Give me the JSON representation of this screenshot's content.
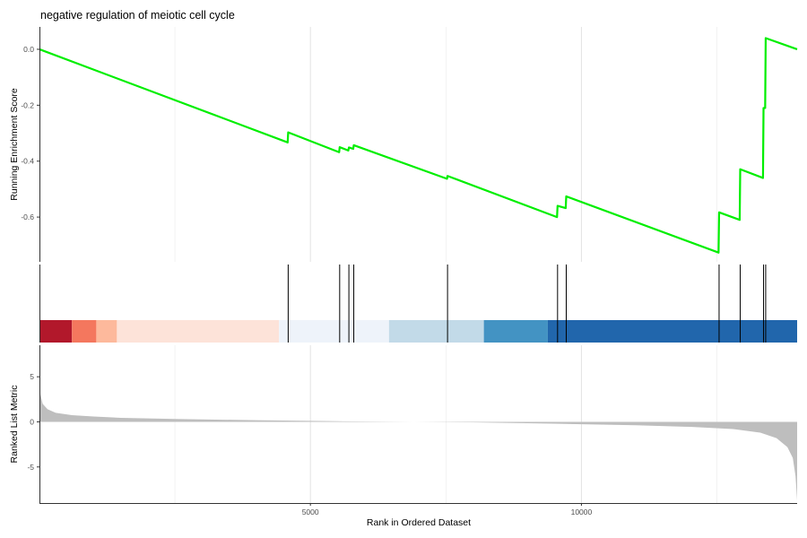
{
  "chart_data": {
    "type": "line",
    "title": "negative regulation of meiotic cell cycle",
    "x_range": [
      1,
      13980
    ],
    "xlabel": "Rank in Ordered Dataset",
    "x_ticks": [
      5000,
      10000
    ],
    "x_tick_labels": [
      "5000",
      "10000"
    ],
    "panels": [
      {
        "id": "running_es",
        "ylabel": "Running Enrichment Score",
        "ylim": [
          -0.76,
          0.08
        ],
        "y_ticks": [
          0.0,
          -0.2,
          -0.4,
          -0.6
        ],
        "y_tick_labels": [
          "0.0",
          "-0.2",
          "-0.4",
          "-0.6"
        ],
        "series_color": "#00EE00",
        "points": [
          [
            0,
            0.0
          ],
          [
            4580,
            -0.333
          ],
          [
            4590,
            -0.297
          ],
          [
            5530,
            -0.368
          ],
          [
            5540,
            -0.35
          ],
          [
            5700,
            -0.362
          ],
          [
            5710,
            -0.351
          ],
          [
            5790,
            -0.356
          ],
          [
            5800,
            -0.343
          ],
          [
            7520,
            -0.463
          ],
          [
            7530,
            -0.453
          ],
          [
            9550,
            -0.6
          ],
          [
            9560,
            -0.56
          ],
          [
            9710,
            -0.568
          ],
          [
            9720,
            -0.526
          ],
          [
            12530,
            -0.727
          ],
          [
            12540,
            -0.583
          ],
          [
            12920,
            -0.61
          ],
          [
            12930,
            -0.429
          ],
          [
            13350,
            -0.46
          ],
          [
            13360,
            -0.21
          ],
          [
            13390,
            -0.21
          ],
          [
            13400,
            0.04
          ],
          [
            13980,
            0.0
          ]
        ]
      },
      {
        "id": "gene_hits",
        "hit_ranks": [
          4590,
          5540,
          5710,
          5800,
          7530,
          9560,
          9720,
          12540,
          12930,
          13360,
          13400
        ],
        "color_bands": [
          {
            "from": 0,
            "to": 600,
            "color": "#B2182B"
          },
          {
            "from": 600,
            "to": 1050,
            "color": "#F4775E"
          },
          {
            "from": 1050,
            "to": 1430,
            "color": "#FDB99C"
          },
          {
            "from": 1430,
            "to": 4420,
            "color": "#FDE3D9"
          },
          {
            "from": 4420,
            "to": 6450,
            "color": "#EEF3FA"
          },
          {
            "from": 6450,
            "to": 8200,
            "color": "#C2DAE8"
          },
          {
            "from": 8200,
            "to": 9380,
            "color": "#4393C3"
          },
          {
            "from": 9380,
            "to": 13980,
            "color": "#2166AC"
          }
        ]
      },
      {
        "id": "ranked_metric",
        "ylabel": "Ranked List Metric",
        "ylim": [
          -9,
          8.5
        ],
        "y_ticks": [
          5,
          0,
          -5
        ],
        "y_tick_labels": [
          "5",
          "0",
          "-5"
        ],
        "fill_color": "#BEBEBE",
        "points": [
          [
            0,
            4.6
          ],
          [
            20,
            3.0
          ],
          [
            60,
            2.0
          ],
          [
            150,
            1.4
          ],
          [
            300,
            1.0
          ],
          [
            600,
            0.75
          ],
          [
            1000,
            0.6
          ],
          [
            1500,
            0.45
          ],
          [
            2500,
            0.32
          ],
          [
            4000,
            0.18
          ],
          [
            5500,
            0.07
          ],
          [
            6900,
            0.0
          ],
          [
            8000,
            -0.05
          ],
          [
            9500,
            -0.2
          ],
          [
            11000,
            -0.38
          ],
          [
            12000,
            -0.55
          ],
          [
            12800,
            -0.8
          ],
          [
            13300,
            -1.2
          ],
          [
            13600,
            -1.8
          ],
          [
            13800,
            -2.8
          ],
          [
            13900,
            -4.0
          ],
          [
            13950,
            -6.0
          ],
          [
            13980,
            -8.7
          ]
        ]
      }
    ]
  }
}
